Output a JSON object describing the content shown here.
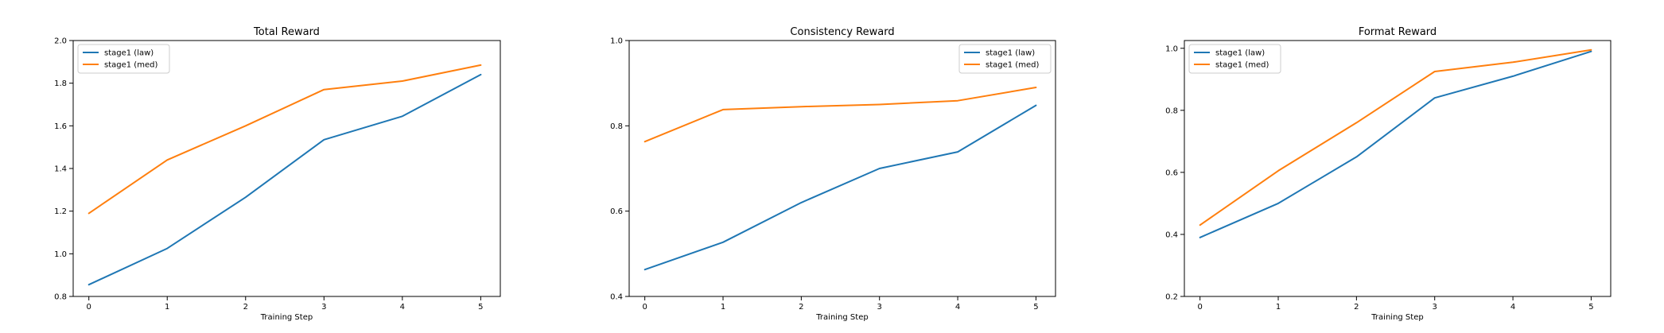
{
  "chart_data": [
    {
      "type": "line",
      "title": "Total Reward",
      "xlabel": "Training Step",
      "ylabel": "",
      "x": [
        0,
        1,
        2,
        3,
        4,
        5
      ],
      "xticks": [
        "0",
        "1",
        "2",
        "3",
        "4",
        "5"
      ],
      "yticks": [
        "0.8",
        "1.0",
        "1.2",
        "1.4",
        "1.6",
        "1.8",
        "2.0"
      ],
      "ylim": [
        0.8,
        2.0
      ],
      "xlim": [
        -0.2,
        5.25
      ],
      "legend_position": "top-left",
      "grid": false,
      "series": [
        {
          "name": "stage1 (law)",
          "color": "#1f77b4",
          "values": [
            0.855,
            1.025,
            1.265,
            1.535,
            1.645,
            1.84
          ]
        },
        {
          "name": "stage1 (med)",
          "color": "#ff7f0e",
          "values": [
            1.19,
            1.44,
            1.6,
            1.77,
            1.81,
            1.885
          ]
        }
      ]
    },
    {
      "type": "line",
      "title": "Consistency Reward",
      "xlabel": "Training Step",
      "ylabel": "",
      "x": [
        0,
        1,
        2,
        3,
        4,
        5
      ],
      "xticks": [
        "0",
        "1",
        "2",
        "3",
        "4",
        "5"
      ],
      "yticks": [
        "0.4",
        "0.6",
        "0.8",
        "1.0"
      ],
      "ylim": [
        0.4,
        1.0
      ],
      "xlim": [
        -0.2,
        5.25
      ],
      "legend_position": "top-right",
      "grid": false,
      "series": [
        {
          "name": "stage1 (law)",
          "color": "#1f77b4",
          "values": [
            0.463,
            0.527,
            0.62,
            0.7,
            0.739,
            0.848
          ]
        },
        {
          "name": "stage1 (med)",
          "color": "#ff7f0e",
          "values": [
            0.763,
            0.838,
            0.845,
            0.85,
            0.859,
            0.89
          ]
        }
      ]
    },
    {
      "type": "line",
      "title": "Format Reward",
      "xlabel": "Training Step",
      "ylabel": "",
      "x": [
        0,
        1,
        2,
        3,
        4,
        5
      ],
      "xticks": [
        "0",
        "1",
        "2",
        "3",
        "4",
        "5"
      ],
      "yticks": [
        "0.2",
        "0.4",
        "0.6",
        "0.8",
        "1.0"
      ],
      "ylim": [
        0.2,
        1.025
      ],
      "xlim": [
        -0.2,
        5.25
      ],
      "legend_position": "top-left",
      "grid": false,
      "series": [
        {
          "name": "stage1 (law)",
          "color": "#1f77b4",
          "values": [
            0.39,
            0.5,
            0.65,
            0.84,
            0.91,
            0.99
          ]
        },
        {
          "name": "stage1 (med)",
          "color": "#ff7f0e",
          "values": [
            0.43,
            0.605,
            0.76,
            0.925,
            0.955,
            0.995
          ]
        }
      ]
    }
  ]
}
